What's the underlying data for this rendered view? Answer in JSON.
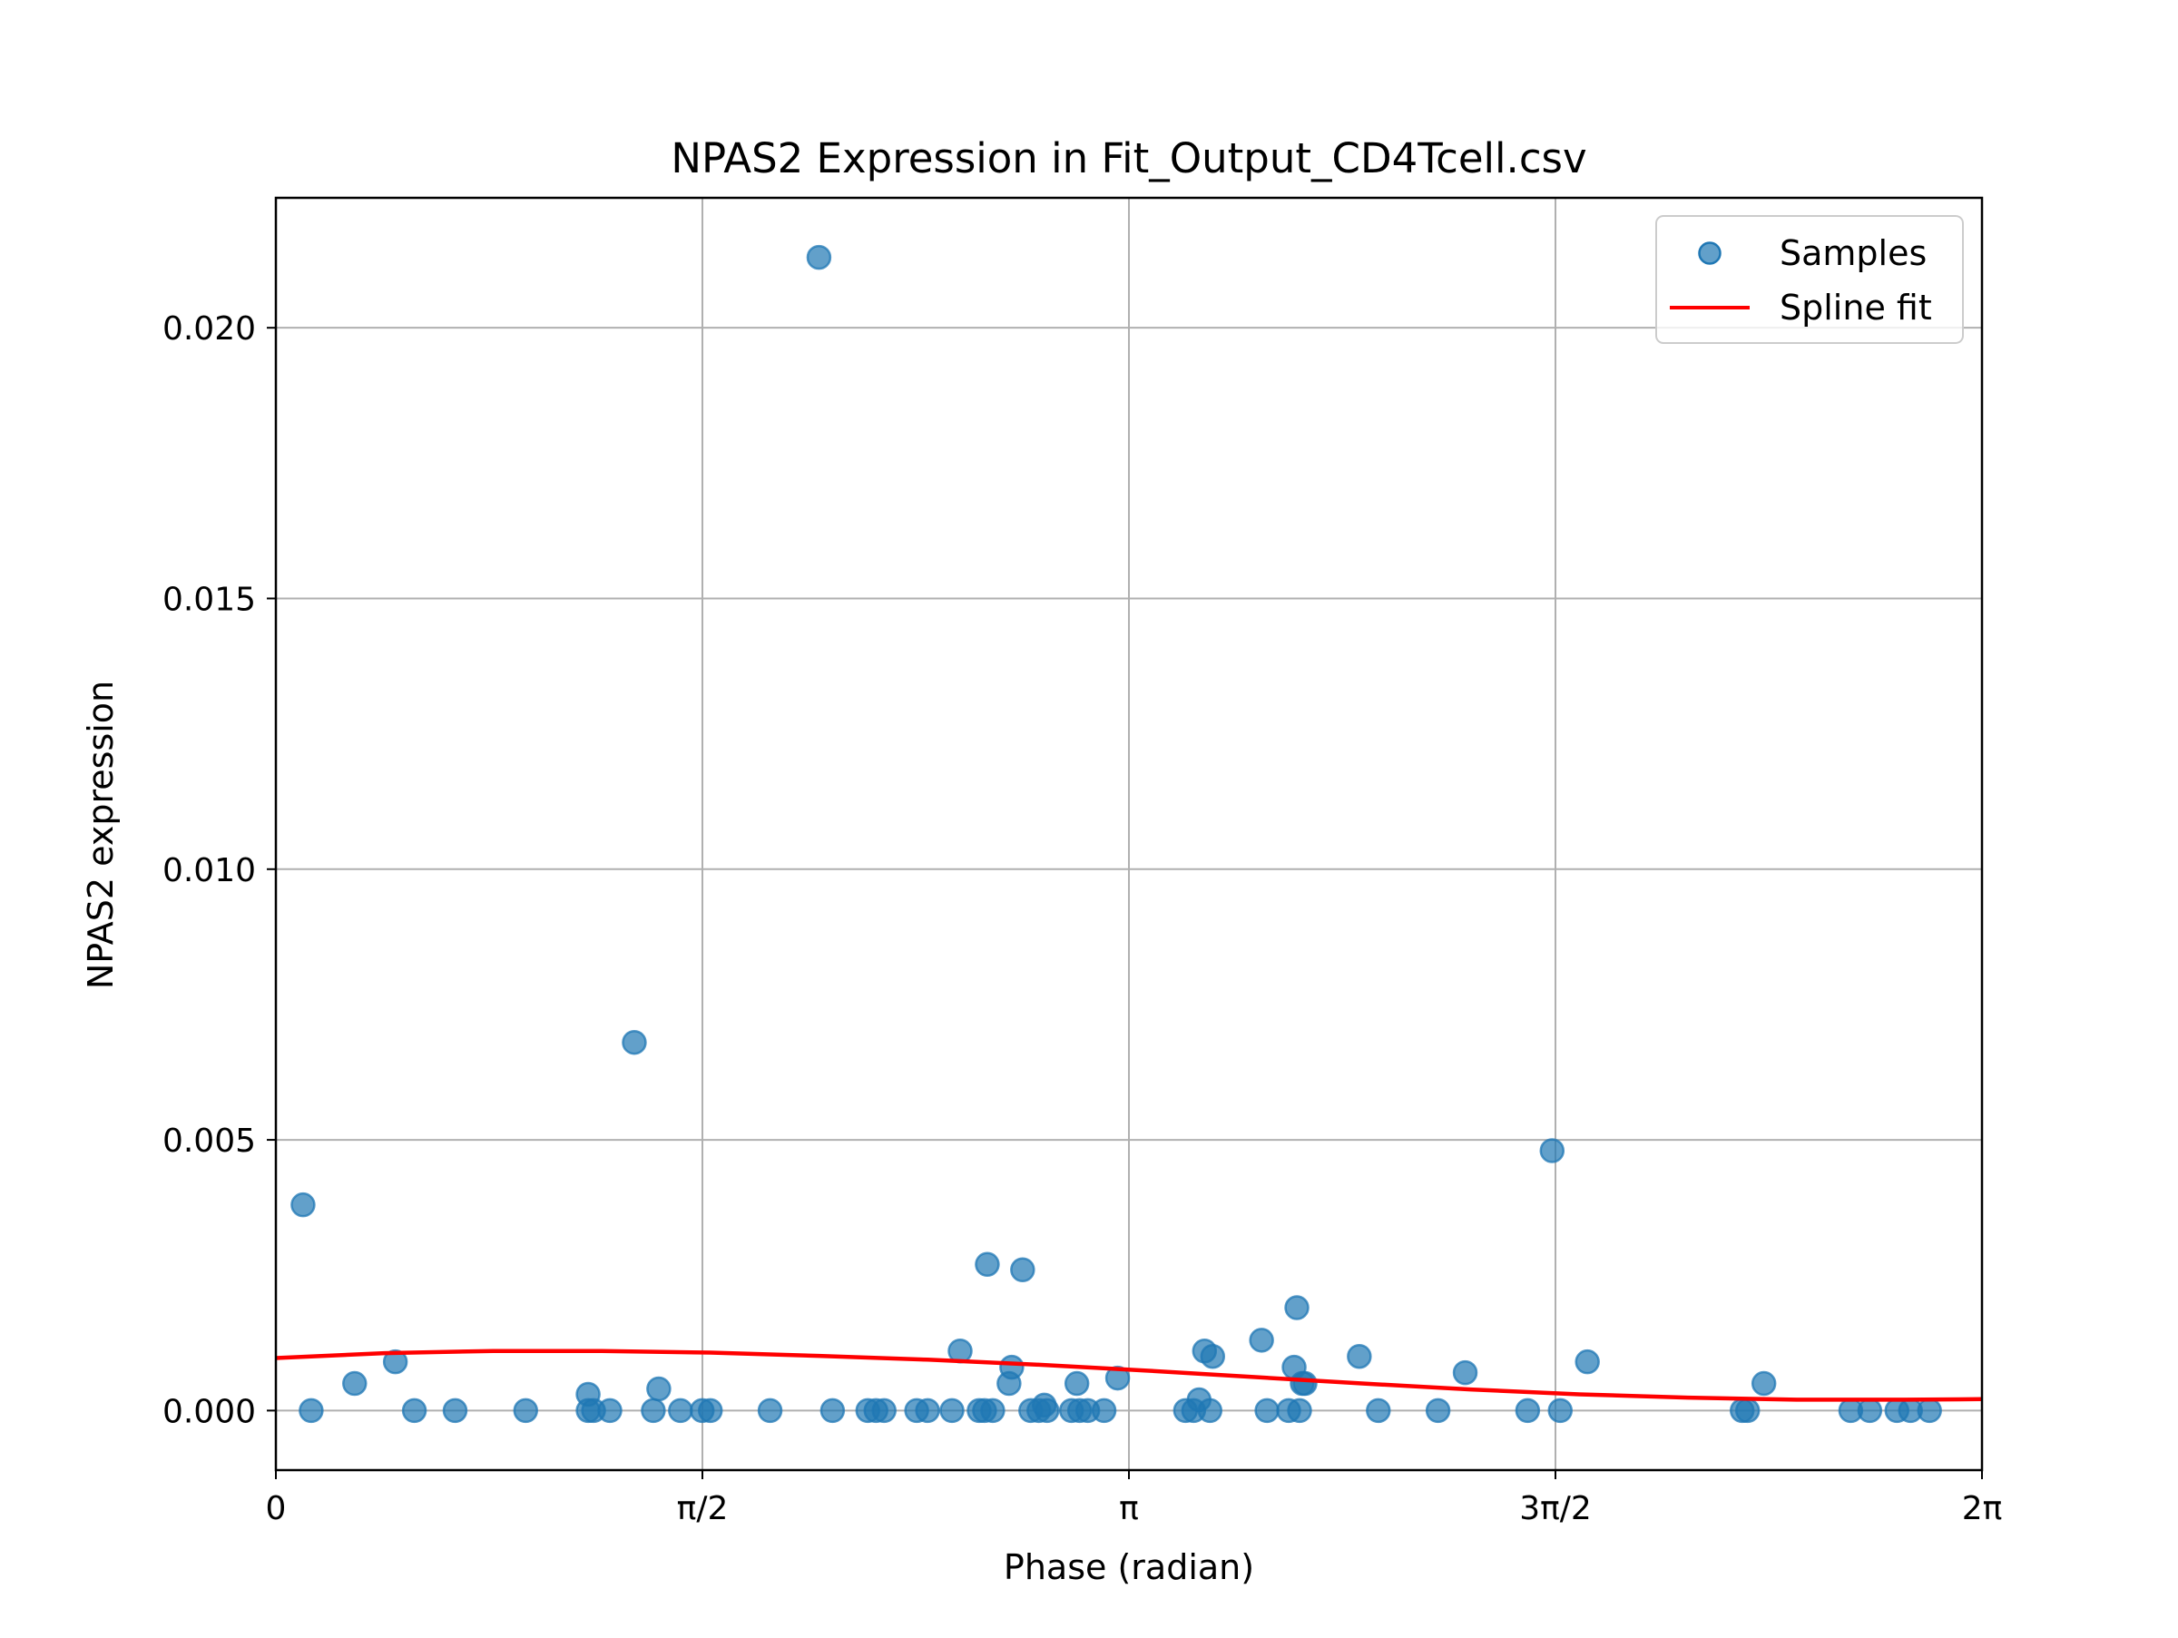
{
  "chart_data": {
    "type": "scatter",
    "title": "NPAS2 Expression in Fit_Output_CD4Tcell.csv",
    "xlabel": "Phase (radian)",
    "ylabel": "NPAS2 expression",
    "xlim": [
      0,
      6.2832
    ],
    "ylim": [
      -0.0011,
      0.0224
    ],
    "grid": true,
    "legend_position": "top-right",
    "x_ticks": [
      {
        "value": 0,
        "label": "0"
      },
      {
        "value": 1.5708,
        "label": "π/2"
      },
      {
        "value": 3.1416,
        "label": "π"
      },
      {
        "value": 4.7124,
        "label": "3π/2"
      },
      {
        "value": 6.2832,
        "label": "2π"
      }
    ],
    "y_ticks": [
      {
        "value": 0.0,
        "label": "0.000"
      },
      {
        "value": 0.005,
        "label": "0.005"
      },
      {
        "value": 0.01,
        "label": "0.010"
      },
      {
        "value": 0.015,
        "label": "0.015"
      },
      {
        "value": 0.02,
        "label": "0.020"
      }
    ],
    "series": [
      {
        "name": "Samples",
        "kind": "scatter",
        "color": "#1f77b4",
        "points": [
          [
            0.1,
            0.0038
          ],
          [
            0.13,
            0.0
          ],
          [
            0.29,
            0.0005
          ],
          [
            0.44,
            0.0009
          ],
          [
            0.51,
            0.0
          ],
          [
            0.66,
            0.0
          ],
          [
            0.92,
            0.0
          ],
          [
            1.15,
            0.0003
          ],
          [
            1.15,
            0.0
          ],
          [
            1.17,
            0.0
          ],
          [
            1.23,
            0.0
          ],
          [
            1.32,
            0.0068
          ],
          [
            1.39,
            0.0
          ],
          [
            1.41,
            0.0004
          ],
          [
            1.49,
            0.0
          ],
          [
            1.57,
            0.0
          ],
          [
            1.6,
            0.0
          ],
          [
            1.82,
            0.0
          ],
          [
            2.0,
            0.0213
          ],
          [
            2.05,
            0.0
          ],
          [
            2.18,
            0.0
          ],
          [
            2.21,
            0.0
          ],
          [
            2.24,
            0.0
          ],
          [
            2.36,
            0.0
          ],
          [
            2.4,
            0.0
          ],
          [
            2.49,
            0.0
          ],
          [
            2.52,
            0.0011
          ],
          [
            2.59,
            0.0
          ],
          [
            2.61,
            0.0
          ],
          [
            2.62,
            0.0027
          ],
          [
            2.64,
            0.0
          ],
          [
            2.7,
            0.0005
          ],
          [
            2.71,
            0.0008
          ],
          [
            2.75,
            0.0026
          ],
          [
            2.78,
            0.0
          ],
          [
            2.81,
            0.0
          ],
          [
            2.83,
            0.0001
          ],
          [
            2.84,
            0.0
          ],
          [
            2.93,
            0.0
          ],
          [
            2.95,
            0.0005
          ],
          [
            2.96,
            0.0
          ],
          [
            2.99,
            0.0
          ],
          [
            3.05,
            0.0
          ],
          [
            3.1,
            0.0006
          ],
          [
            3.35,
            0.0
          ],
          [
            3.38,
            0.0
          ],
          [
            3.4,
            0.0002
          ],
          [
            3.42,
            0.0011
          ],
          [
            3.44,
            0.0
          ],
          [
            3.45,
            0.001
          ],
          [
            3.63,
            0.0013
          ],
          [
            3.65,
            0.0
          ],
          [
            3.73,
            0.0
          ],
          [
            3.75,
            0.0008
          ],
          [
            3.76,
            0.0019
          ],
          [
            3.77,
            0.0
          ],
          [
            3.78,
            0.0005
          ],
          [
            3.79,
            0.0005
          ],
          [
            3.99,
            0.001
          ],
          [
            4.06,
            0.0
          ],
          [
            4.28,
            0.0
          ],
          [
            4.38,
            0.0007
          ],
          [
            4.61,
            0.0
          ],
          [
            4.73,
            0.0
          ],
          [
            4.7,
            0.0048
          ],
          [
            4.83,
            0.0009
          ],
          [
            5.4,
            0.0
          ],
          [
            5.42,
            0.0
          ],
          [
            5.48,
            0.0005
          ],
          [
            5.8,
            0.0
          ],
          [
            5.87,
            0.0
          ],
          [
            5.97,
            0.0
          ],
          [
            6.02,
            0.0
          ],
          [
            6.09,
            0.0
          ]
        ]
      },
      {
        "name": "Spline fit",
        "kind": "line",
        "color": "#ff0000",
        "points": [
          [
            0.0,
            0.00097
          ],
          [
            0.4,
            0.00106
          ],
          [
            0.8,
            0.0011
          ],
          [
            1.2,
            0.0011
          ],
          [
            1.6,
            0.00107
          ],
          [
            2.0,
            0.00101
          ],
          [
            2.4,
            0.00094
          ],
          [
            2.8,
            0.00085
          ],
          [
            3.2,
            0.00074
          ],
          [
            3.6,
            0.00062
          ],
          [
            4.0,
            0.0005
          ],
          [
            4.4,
            0.00039
          ],
          [
            4.8,
            0.0003
          ],
          [
            5.2,
            0.00024
          ],
          [
            5.6,
            0.0002
          ],
          [
            6.0,
            0.0002
          ],
          [
            6.2832,
            0.00021
          ]
        ]
      }
    ]
  }
}
